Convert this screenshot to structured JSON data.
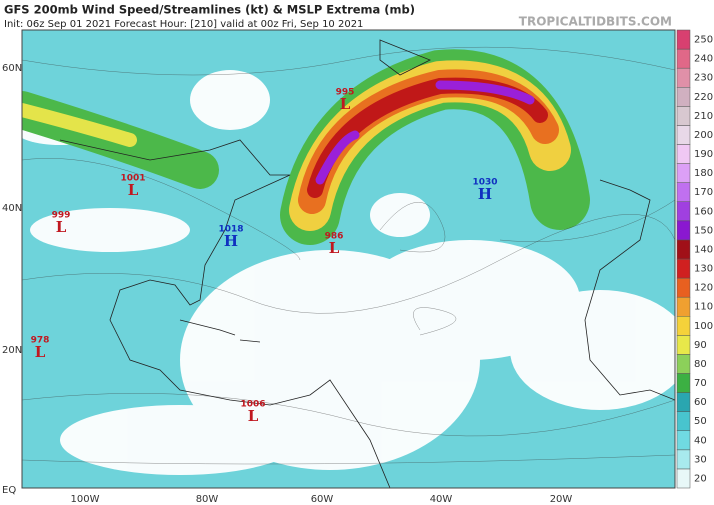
{
  "header": {
    "title": "GFS 200mb Wind Speed/Streamlines (kt) & MSLP Extrema (mb)",
    "subtitle": "Init: 06z Sep 01 2021   Forecast Hour: [210]   valid at 00z Fri, Sep 10 2021",
    "source": "TROPICALTIDBITS.COM"
  },
  "map": {
    "lat_labels": [
      "60N",
      "40N",
      "20N",
      "EQ"
    ],
    "lon_labels": [
      "100W",
      "80W",
      "60W",
      "40W",
      "20W"
    ],
    "pressure_centers": [
      {
        "value": "995",
        "symbol": "L"
      },
      {
        "value": "1001",
        "symbol": "L"
      },
      {
        "value": "999",
        "symbol": "L"
      },
      {
        "value": "1018",
        "symbol": "H"
      },
      {
        "value": "986",
        "symbol": "L"
      },
      {
        "value": "1030",
        "symbol": "H"
      },
      {
        "value": "978",
        "symbol": "L"
      },
      {
        "value": "1006",
        "symbol": "L"
      }
    ]
  },
  "colorbar": {
    "ticks": [
      20,
      30,
      40,
      50,
      60,
      70,
      80,
      90,
      100,
      110,
      120,
      130,
      140,
      150,
      160,
      170,
      180,
      190,
      200,
      210,
      220,
      230,
      240,
      250
    ]
  }
}
